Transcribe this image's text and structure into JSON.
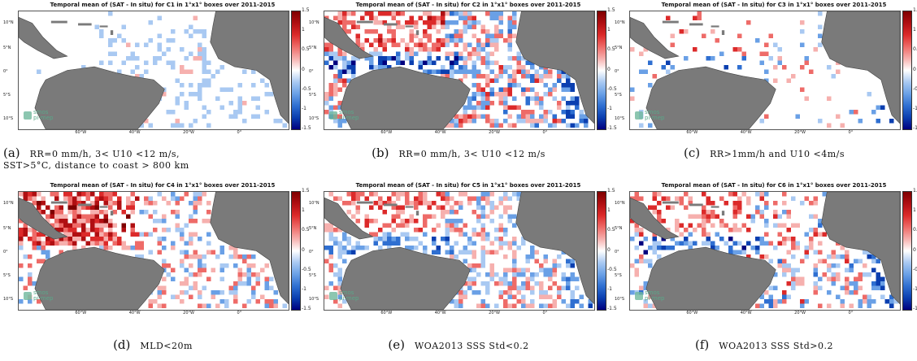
{
  "colors": {
    "land": "#7a7a7a",
    "ocean": "#ffffff",
    "colormap": [
      "#00007f",
      "#0b3fb0",
      "#2f6fd1",
      "#6aa0e6",
      "#a9c9f2",
      "#ffffff",
      "#f6b0ae",
      "#ee6b68",
      "#dc2a2a",
      "#b00f12",
      "#7f0000"
    ]
  },
  "logo": {
    "line1": "smos",
    "line2": "pi-mep"
  },
  "colorbar_ticks": [
    "1.5",
    "1",
    "0.5",
    "0",
    "-0.5",
    "-1",
    "-1.5"
  ],
  "lat_labels": [
    "10°N",
    "5°N",
    "0°",
    "5°S",
    "10°S"
  ],
  "lon_labels": [
    "60°W",
    "40°W",
    "20°W",
    "0°"
  ],
  "chart_data": [
    {
      "type": "heatmap",
      "title": "Temporal mean of (SAT - In situ) for C1 in 1°x1° boxes over 2011-2015",
      "caption_letter": "(a)",
      "caption_line1": "RR=0 mm/h, 3< U10 <12 m/s,",
      "caption_line2": "SST>5°C, distance to coast > 800 km",
      "colorbar": {
        "min": -1.5,
        "max": 1.5
      },
      "dominant_sign": "negative",
      "intensity": 0.3,
      "density": 0.35
    },
    {
      "type": "heatmap",
      "title": "Temporal mean of (SAT - In situ) for C2 in 1°x1° boxes over 2011-2015",
      "caption_letter": "(b)",
      "caption_line1": "RR=0 mm/h, 3< U10 <12 m/s",
      "caption_line2": "",
      "colorbar": {
        "min": -1.5,
        "max": 1.5
      },
      "dominant_sign": "mixed",
      "intensity": 0.55,
      "density": 0.7
    },
    {
      "type": "heatmap",
      "title": "Temporal mean of (SAT - In situ) for C3 in 1°x1° boxes over 2011-2015",
      "caption_letter": "(c)",
      "caption_line1": "RR>1mm/h and U10 <4m/s",
      "caption_line2": "",
      "colorbar": {
        "min": -1.5,
        "max": 1.5
      },
      "dominant_sign": "mixed",
      "intensity": 0.5,
      "density": 0.12
    },
    {
      "type": "heatmap",
      "title": "Temporal mean of (SAT - In situ) for C4 in 1°x1° boxes over 2011-2015",
      "caption_letter": "(d)",
      "caption_line1": "MLD<20m",
      "caption_line2": "",
      "colorbar": {
        "min": -1.5,
        "max": 1.5
      },
      "dominant_sign": "positive",
      "intensity": 0.6,
      "density": 0.55
    },
    {
      "type": "heatmap",
      "title": "Temporal mean of (SAT - In situ) for C5 in 1°x1° boxes over 2011-2015",
      "caption_letter": "(e)",
      "caption_line1": "WOA2013 SSS Std<0.2",
      "caption_line2": "",
      "colorbar": {
        "min": -1.5,
        "max": 1.5
      },
      "dominant_sign": "mixed",
      "intensity": 0.45,
      "density": 0.6
    },
    {
      "type": "heatmap",
      "title": "Temporal mean of (SAT - In situ) for C6 in 1°x1° boxes over 2011-2015",
      "caption_letter": "(f)",
      "caption_line1": "WOA2013 SSS Std>0.2",
      "caption_line2": "",
      "colorbar": {
        "min": -1.5,
        "max": 1.5
      },
      "dominant_sign": "mixed",
      "intensity": 0.55,
      "density": 0.45
    }
  ]
}
